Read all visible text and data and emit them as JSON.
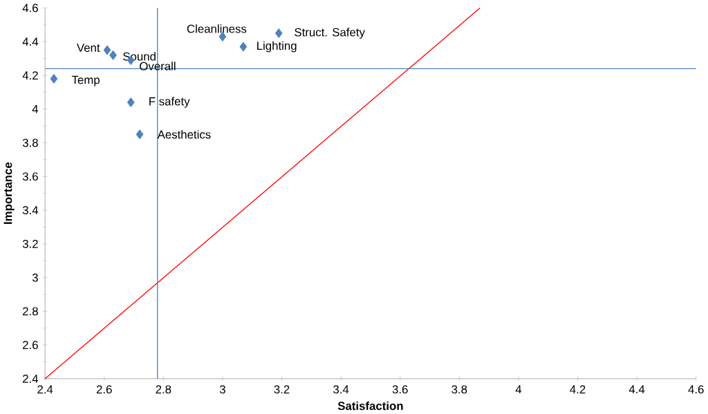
{
  "chart_data": {
    "type": "scatter",
    "xlabel": "Satisfaction",
    "ylabel": "Importance",
    "xlim": [
      2.4,
      4.6
    ],
    "ylim": [
      2.4,
      4.6
    ],
    "xticks": [
      2.4,
      2.6,
      2.8,
      3,
      3.2,
      3.4,
      3.6,
      3.8,
      4,
      4.2,
      4.4,
      4.6
    ],
    "yticks": [
      2.4,
      2.6,
      2.8,
      3,
      3.2,
      3.4,
      3.6,
      3.8,
      4,
      4.2,
      4.4,
      4.6
    ],
    "grid": false,
    "marker": "diamond",
    "series": [
      {
        "color": "#4f81bd",
        "x": [
          2.43,
          2.61,
          2.63,
          2.69,
          2.69,
          2.72,
          3.0,
          3.07,
          3.19
        ],
        "values": [
          4.18,
          4.35,
          4.32,
          4.29,
          4.04,
          3.85,
          4.43,
          4.37,
          4.45
        ]
      },
      {
        "type": "line",
        "color": "#ff0000",
        "marker": "none",
        "line_style": "solid",
        "x": [
          2.4,
          3.87
        ],
        "values": [
          2.4,
          4.6
        ]
      }
    ],
    "ref_lines": [
      {
        "axis": "x",
        "value": 2.78,
        "color": "#4f81bd"
      },
      {
        "axis": "y",
        "value": 4.24,
        "color": "#4f81bd"
      }
    ],
    "annotations": [
      {
        "text": "Temp",
        "x": 2.43,
        "y": 4.18
      },
      {
        "text": "Vent",
        "x": 2.61,
        "y": 4.35
      },
      {
        "text": "Sound",
        "x": 2.63,
        "y": 4.32
      },
      {
        "text": "Overall",
        "x": 2.69,
        "y": 4.29
      },
      {
        "text": "F safety",
        "x": 2.69,
        "y": 4.04
      },
      {
        "text": "Aesthetics",
        "x": 2.72,
        "y": 3.85
      },
      {
        "text": "Cleanliness",
        "x": 3.0,
        "y": 4.43
      },
      {
        "text": "Lighting",
        "x": 3.07,
        "y": 4.37
      },
      {
        "text": "Struct. Safety",
        "x": 3.19,
        "y": 4.45
      }
    ]
  }
}
